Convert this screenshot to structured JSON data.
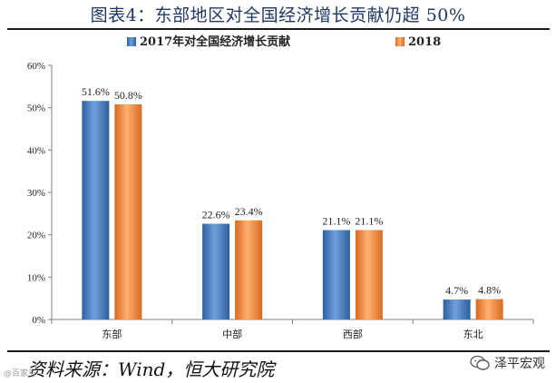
{
  "title": "图表4：东部地区对全国经济增长贡献仍超 50%",
  "source": "资料来源：Wind，恒大研究院",
  "watermark_left": "@百家号",
  "wechat_account": "泽平宏观",
  "colors": {
    "series_2017": "#3e73b8",
    "series_2018": "#ed7d31",
    "title": "#1f3864"
  },
  "chart_data": {
    "type": "bar",
    "categories": [
      "东部",
      "中部",
      "西部",
      "东北"
    ],
    "series": [
      {
        "name": "2017年对全国经济增长贡献",
        "values": [
          51.6,
          22.6,
          21.1,
          4.7
        ]
      },
      {
        "name": "2018",
        "values": [
          50.8,
          23.4,
          21.1,
          4.8
        ]
      }
    ],
    "value_labels": [
      [
        "51.6%",
        "22.6%",
        "21.1%",
        "4.7%"
      ],
      [
        "50.8%",
        "23.4%",
        "21.1%",
        "4.8%"
      ]
    ],
    "yticks": [
      0,
      10,
      20,
      30,
      40,
      50,
      60
    ],
    "ytick_labels": [
      "0%",
      "10%",
      "20%",
      "30%",
      "40%",
      "50%",
      "60%"
    ],
    "ylim": [
      0,
      60
    ],
    "legend_position": "top",
    "grid": false
  }
}
